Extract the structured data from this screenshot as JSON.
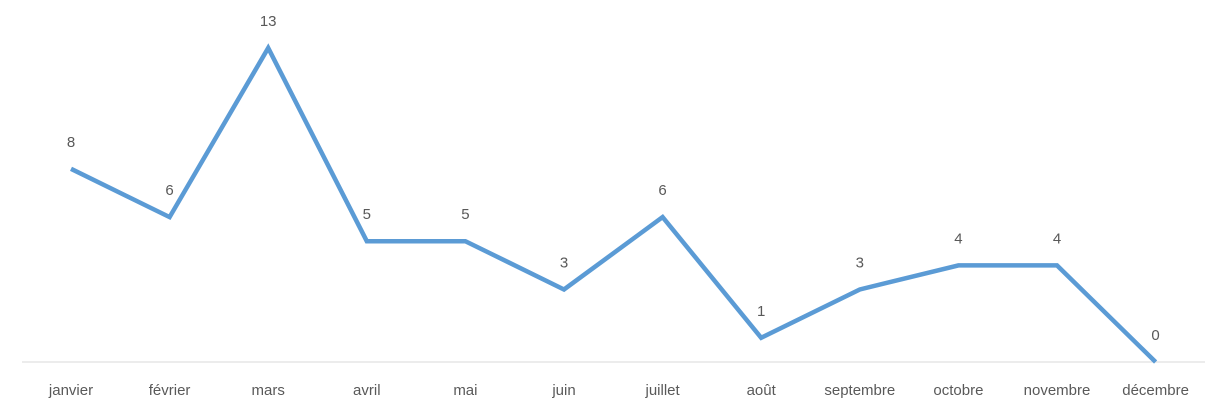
{
  "chart_data": {
    "type": "line",
    "categories": [
      "janvier",
      "février",
      "mars",
      "avril",
      "mai",
      "juin",
      "juillet",
      "août",
      "septembre",
      "octobre",
      "novembre",
      "décembre"
    ],
    "values": [
      8,
      6,
      13,
      5,
      5,
      3,
      6,
      1,
      3,
      4,
      4,
      0
    ],
    "title": "",
    "xlabel": "",
    "ylabel": "",
    "ylim": [
      0,
      13
    ],
    "data_labels": true,
    "grid": false,
    "legend": "none"
  },
  "colors": {
    "line": "#5B9BD5",
    "axis": "#D9D9D9",
    "text": "#595959"
  }
}
